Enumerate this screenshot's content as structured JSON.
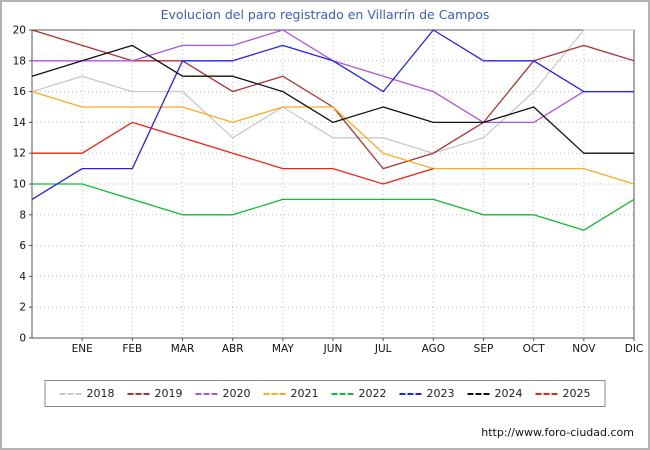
{
  "footer_url": "http://www.foro-ciudad.com",
  "title_color": "#3b5bcc",
  "chart_data": {
    "type": "line",
    "title": "Evolucion del paro registrado en Villarrín de Campos",
    "xlabel": "",
    "ylabel": "",
    "ylim": [
      0,
      20
    ],
    "ytick_step": 2,
    "grid": true,
    "legend_position": "bottom",
    "categories": [
      "",
      "ENE",
      "FEB",
      "MAR",
      "ABR",
      "MAY",
      "JUN",
      "JUL",
      "AGO",
      "SEP",
      "OCT",
      "NOV",
      "DIC"
    ],
    "series": [
      {
        "name": "2018",
        "color": "#c9c9c9",
        "values": [
          16,
          17,
          16,
          16,
          13,
          15,
          13,
          13,
          12,
          13,
          16,
          20,
          20
        ]
      },
      {
        "name": "2019",
        "color": "#aa3333",
        "values": [
          20,
          19,
          18,
          18,
          16,
          17,
          15,
          11,
          12,
          14,
          18,
          19,
          18
        ]
      },
      {
        "name": "2020",
        "color": "#aa55dd",
        "values": [
          18,
          18,
          18,
          19,
          19,
          20,
          18,
          17,
          16,
          14,
          14,
          16,
          16
        ]
      },
      {
        "name": "2021",
        "color": "#ffaa22",
        "values": [
          16,
          15,
          15,
          15,
          14,
          15,
          15,
          12,
          11,
          11,
          11,
          11,
          10
        ]
      },
      {
        "name": "2022",
        "color": "#11bb33",
        "values": [
          10,
          10,
          9,
          8,
          8,
          9,
          9,
          9,
          9,
          8,
          8,
          7,
          9
        ]
      },
      {
        "name": "2023",
        "color": "#2222ee",
        "values": [
          9,
          11,
          11,
          18,
          18,
          19,
          18,
          16,
          20,
          18,
          18,
          16,
          16
        ]
      },
      {
        "name": "2024",
        "color": "#111111",
        "values": [
          17,
          18,
          19,
          17,
          17,
          16,
          14,
          15,
          14,
          14,
          15,
          12,
          12
        ]
      },
      {
        "name": "2025",
        "color": "#ee2211",
        "values": [
          12,
          12,
          14,
          13,
          12,
          11,
          11,
          10,
          11,
          null,
          null,
          null,
          null
        ]
      }
    ]
  }
}
